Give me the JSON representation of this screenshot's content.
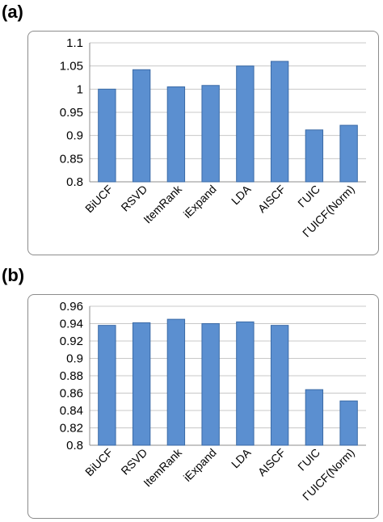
{
  "panels": [
    {
      "label": "(a)"
    },
    {
      "label": "(b)"
    }
  ],
  "colors": {
    "bar_fill": "#5b8fd0",
    "bar_stroke": "#3a6aa6",
    "grid": "#c8c8c8",
    "axis": "#8c8c8c"
  },
  "chart_data": [
    {
      "type": "bar",
      "categories": [
        "BiUCF",
        "RSVD",
        "ItemRank",
        "iExpand",
        "LDA",
        "AISCF",
        "ΓUIC",
        "ΓUICF(Norm)"
      ],
      "values": [
        1.0,
        1.042,
        1.005,
        1.008,
        1.05,
        1.06,
        0.912,
        0.922
      ],
      "ylim": [
        0.8,
        1.1
      ],
      "yticks": [
        "0.8",
        "0.85",
        "0.9",
        "0.95",
        "1",
        "1.05",
        "1.1"
      ],
      "grid": true,
      "title": "",
      "xlabel": "",
      "ylabel": ""
    },
    {
      "type": "bar",
      "categories": [
        "BiUCF",
        "RSVD",
        "ItemRank",
        "iExpand",
        "LDA",
        "AISCF",
        "ΓUIC",
        "ΓUICF(Norm)"
      ],
      "values": [
        0.938,
        0.941,
        0.945,
        0.94,
        0.942,
        0.938,
        0.864,
        0.851
      ],
      "ylim": [
        0.8,
        0.96
      ],
      "yticks": [
        "0.8",
        "0.82",
        "0.84",
        "0.86",
        "0.88",
        "0.9",
        "0.92",
        "0.94",
        "0.96"
      ],
      "grid": true,
      "title": "",
      "xlabel": "",
      "ylabel": ""
    }
  ]
}
